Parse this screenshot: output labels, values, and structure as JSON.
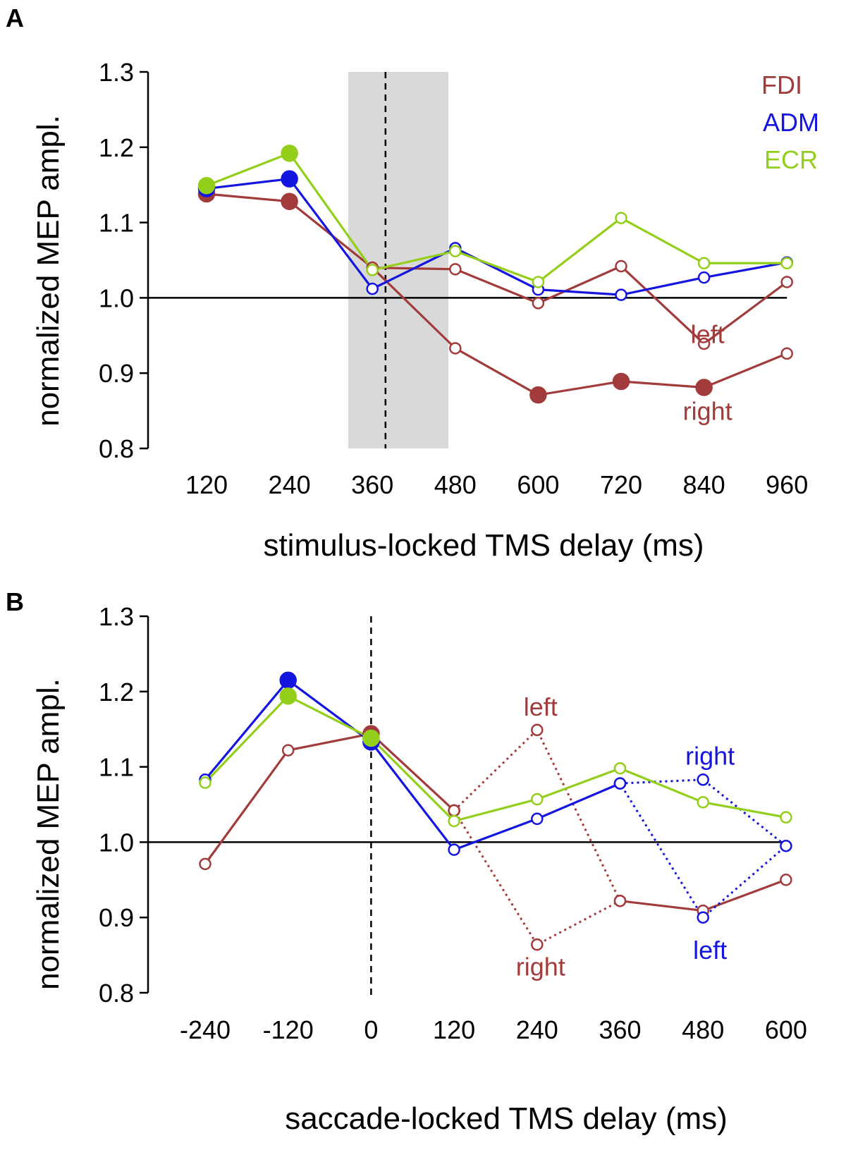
{
  "colors": {
    "FDI": "#a23b3b",
    "ADM": "#1515e0",
    "ECR": "#93cf1a",
    "shade": "#d9d9d9"
  },
  "legend": [
    {
      "name": "FDI",
      "color": "#a23b3b"
    },
    {
      "name": "ADM",
      "color": "#1515e0"
    },
    {
      "name": "ECR",
      "color": "#93cf1a"
    }
  ],
  "chart_data": [
    {
      "panel": "A",
      "type": "line",
      "title": "",
      "xlabel": "stimulus-locked TMS delay (ms)",
      "ylabel": "normalized MEP ampl.",
      "ylim": [
        0.8,
        1.3
      ],
      "yticks": [
        "0.8",
        "0.9",
        "1.0",
        "1.1",
        "1.2",
        "1.3"
      ],
      "x": [
        120,
        240,
        360,
        480,
        600,
        720,
        840,
        960
      ],
      "xtick_labels": [
        "120",
        "240",
        "360",
        "480",
        "600",
        "720",
        "840",
        "960"
      ],
      "reference_line": 1.0,
      "shaded_region": [
        325,
        470
      ],
      "vline": 379,
      "series": [
        {
          "name": "FDI",
          "color": "FDI",
          "style": "solid",
          "points": [
            [
              120,
              1.138
            ],
            [
              240,
              1.128
            ],
            [
              360,
              1.04
            ]
          ],
          "filled": [
            true,
            true,
            false
          ]
        },
        {
          "name": "FDI left",
          "color": "FDI",
          "style": "solid",
          "points": [
            [
              360,
              1.04
            ],
            [
              480,
              1.038
            ],
            [
              600,
              0.993
            ],
            [
              720,
              1.042
            ],
            [
              840,
              0.939
            ],
            [
              960,
              1.021
            ]
          ],
          "filled": [
            false,
            false,
            false,
            false,
            false,
            false
          ]
        },
        {
          "name": "FDI right",
          "color": "FDI",
          "style": "solid",
          "points": [
            [
              360,
              1.04
            ],
            [
              480,
              0.933
            ],
            [
              600,
              0.871
            ],
            [
              720,
              0.889
            ],
            [
              840,
              0.881
            ],
            [
              960,
              0.926
            ]
          ],
          "filled": [
            false,
            false,
            true,
            true,
            true,
            false
          ]
        },
        {
          "name": "ADM",
          "color": "ADM",
          "style": "solid",
          "points": [
            [
              120,
              1.145
            ],
            [
              240,
              1.158
            ],
            [
              360,
              1.012
            ],
            [
              480,
              1.066
            ],
            [
              600,
              1.011
            ],
            [
              720,
              1.004
            ],
            [
              840,
              1.027
            ],
            [
              960,
              1.047
            ]
          ],
          "filled": [
            true,
            true,
            false,
            false,
            false,
            false,
            false,
            false
          ]
        },
        {
          "name": "ECR",
          "color": "ECR",
          "style": "solid",
          "points": [
            [
              120,
              1.149
            ],
            [
              240,
              1.192
            ],
            [
              360,
              1.037
            ],
            [
              480,
              1.062
            ],
            [
              600,
              1.021
            ],
            [
              720,
              1.106
            ],
            [
              840,
              1.046
            ],
            [
              960,
              1.046
            ]
          ],
          "filled": [
            true,
            true,
            false,
            false,
            false,
            false,
            false,
            false
          ]
        }
      ],
      "annotations": [
        {
          "text": "left",
          "color": "FDI",
          "x": 840,
          "y": 0.94
        },
        {
          "text": "right",
          "color": "FDI",
          "x": 840,
          "y": 0.838
        }
      ],
      "show_legend": true
    },
    {
      "panel": "B",
      "type": "line",
      "title": "",
      "xlabel": "saccade-locked TMS delay (ms)",
      "ylabel": "normalized MEP ampl.",
      "ylim": [
        0.8,
        1.3
      ],
      "yticks": [
        "0.8",
        "0.9",
        "1.0",
        "1.1",
        "1.2",
        "1.3"
      ],
      "x": [
        -240,
        -120,
        0,
        120,
        240,
        360,
        480,
        600
      ],
      "xtick_labels": [
        "-240",
        "-120",
        "0",
        "120",
        "240",
        "360",
        "480",
        "600"
      ],
      "reference_line": 1.0,
      "vline": 0,
      "series": [
        {
          "name": "FDI",
          "color": "FDI",
          "style": "solid",
          "points": [
            [
              -240,
              0.971
            ],
            [
              -120,
              1.122
            ],
            [
              0,
              1.144
            ],
            [
              120,
              1.042
            ]
          ],
          "filled": [
            false,
            false,
            true,
            false
          ]
        },
        {
          "name": "FDI main",
          "color": "FDI",
          "style": "solid",
          "points": [
            [
              360,
              0.922
            ],
            [
              480,
              0.909
            ],
            [
              600,
              0.95
            ]
          ],
          "filled": [
            false,
            false,
            false
          ]
        },
        {
          "name": "FDI left/right",
          "color": "FDI",
          "style": "dotted",
          "points": [
            [
              120,
              1.042
            ],
            [
              240,
              1.149
            ],
            [
              360,
              0.922
            ],
            [
              240,
              0.864
            ],
            [
              120,
              1.042
            ]
          ],
          "filled": [
            false,
            false,
            false,
            false,
            false
          ]
        },
        {
          "name": "ADM",
          "color": "ADM",
          "style": "solid",
          "points": [
            [
              -240,
              1.083
            ],
            [
              -120,
              1.215
            ],
            [
              0,
              1.133
            ],
            [
              120,
              0.99
            ],
            [
              240,
              1.031
            ],
            [
              360,
              1.078
            ]
          ],
          "filled": [
            false,
            true,
            true,
            false,
            false,
            false
          ]
        },
        {
          "name": "ADM left/right",
          "color": "ADM",
          "style": "dotted",
          "points": [
            [
              360,
              1.078
            ],
            [
              480,
              1.083
            ],
            [
              600,
              0.995
            ],
            [
              480,
              0.9
            ],
            [
              360,
              1.078
            ]
          ],
          "filled": [
            false,
            false,
            false,
            false,
            false
          ]
        },
        {
          "name": "ECR",
          "color": "ECR",
          "style": "solid",
          "points": [
            [
              -240,
              1.079
            ],
            [
              -120,
              1.194
            ],
            [
              0,
              1.138
            ],
            [
              120,
              1.028
            ],
            [
              240,
              1.057
            ],
            [
              360,
              1.098
            ],
            [
              480,
              1.053
            ],
            [
              600,
              1.033
            ]
          ],
          "filled": [
            false,
            true,
            true,
            false,
            false,
            false,
            false,
            false
          ]
        }
      ],
      "annotations": [
        {
          "text": "left",
          "color": "FDI",
          "x": 240,
          "y": 1.168
        },
        {
          "text": "right",
          "color": "FDI",
          "x": 240,
          "y": 0.823
        },
        {
          "text": "right",
          "color": "ADM",
          "x": 485,
          "y": 1.103
        },
        {
          "text": "left",
          "color": "ADM",
          "x": 485,
          "y": 0.845
        }
      ],
      "show_legend": false
    }
  ]
}
